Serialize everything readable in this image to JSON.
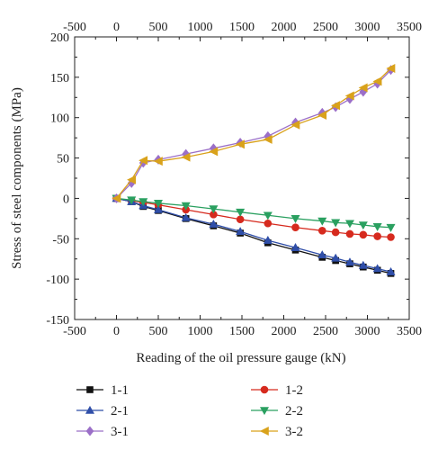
{
  "chart_data": {
    "type": "line",
    "title": "",
    "xlabel": "Reading of the oil pressure gauge (kN)",
    "ylabel": "Stress of steel components (MPa)",
    "xlim": [
      -500,
      3500
    ],
    "ylim": [
      -150,
      200
    ],
    "xticks": [
      -500,
      0,
      500,
      1000,
      1500,
      2000,
      2500,
      3000,
      3500
    ],
    "yticks": [
      -150,
      -100,
      -50,
      0,
      50,
      100,
      150,
      200
    ],
    "x_tick_labels": [
      "-500",
      "0",
      "500",
      "1000",
      "1500",
      "2000",
      "2500",
      "3000",
      "3500"
    ],
    "top_x_tick_labels": [
      "-500",
      "0",
      "500",
      "1000",
      "1500",
      "2000",
      "2500",
      "3000",
      "3500"
    ],
    "y_tick_labels": [
      "-150",
      "-100",
      "-50",
      "0",
      "50",
      "100",
      "150",
      "200"
    ],
    "grid": false,
    "legend_position": "bottom",
    "series": [
      {
        "name": "1-1",
        "color": "#111111",
        "marker": "square",
        "x": [
          0,
          180,
          320,
          500,
          830,
          1160,
          1480,
          1810,
          2140,
          2460,
          2620,
          2790,
          2950,
          3120,
          3280
        ],
        "y": [
          0,
          -4,
          -10,
          -15,
          -25,
          -34,
          -43,
          -55,
          -64,
          -73,
          -77,
          -81,
          -85,
          -89,
          -93
        ]
      },
      {
        "name": "1-2",
        "color": "#d62a1e",
        "marker": "circle",
        "x": [
          0,
          180,
          320,
          500,
          830,
          1160,
          1480,
          1810,
          2140,
          2460,
          2620,
          2790,
          2950,
          3120,
          3280
        ],
        "y": [
          0,
          -3,
          -5,
          -8,
          -14,
          -20,
          -26,
          -31,
          -36,
          -40,
          -42,
          -44,
          -45,
          -47,
          -48
        ]
      },
      {
        "name": "2-1",
        "color": "#2f4ea8",
        "marker": "triangle-up",
        "x": [
          0,
          180,
          320,
          500,
          830,
          1160,
          1480,
          1810,
          2140,
          2460,
          2620,
          2790,
          2950,
          3120,
          3280
        ],
        "y": [
          0,
          -4,
          -9,
          -14,
          -24,
          -32,
          -41,
          -52,
          -61,
          -70,
          -74,
          -79,
          -83,
          -87,
          -91
        ]
      },
      {
        "name": "2-2",
        "color": "#2aa060",
        "marker": "triangle-down",
        "x": [
          0,
          180,
          320,
          500,
          830,
          1160,
          1480,
          1810,
          2140,
          2460,
          2620,
          2790,
          2950,
          3120,
          3280
        ],
        "y": [
          0,
          -2,
          -4,
          -6,
          -9,
          -13,
          -17,
          -21,
          -25,
          -28,
          -30,
          -31,
          -33,
          -35,
          -36
        ]
      },
      {
        "name": "3-1",
        "color": "#9b6fc8",
        "marker": "diamond",
        "x": [
          0,
          180,
          320,
          500,
          830,
          1160,
          1480,
          1810,
          2140,
          2460,
          2620,
          2790,
          2950,
          3120,
          3280
        ],
        "y": [
          0,
          19,
          44,
          48,
          55,
          62,
          69,
          77,
          94,
          106,
          113,
          123,
          132,
          142,
          159
        ]
      },
      {
        "name": "3-2",
        "color": "#d9a21b",
        "marker": "left-triangle",
        "x": [
          0,
          180,
          320,
          500,
          830,
          1160,
          1480,
          1810,
          2140,
          2460,
          2620,
          2790,
          2950,
          3120,
          3280
        ],
        "y": [
          0,
          23,
          47,
          46,
          51,
          58,
          67,
          73,
          91,
          103,
          115,
          127,
          137,
          145,
          161
        ]
      }
    ]
  }
}
